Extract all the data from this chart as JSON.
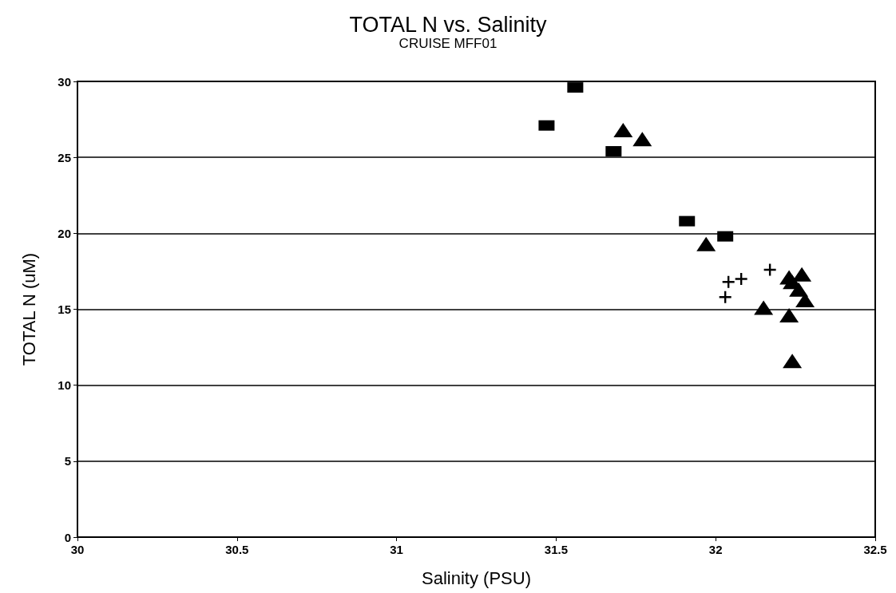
{
  "chart_data": {
    "type": "scatter",
    "title": "TOTAL N vs. Salinity",
    "subtitle": "CRUISE MFF01",
    "xlabel": "Salinity (PSU)",
    "ylabel": "TOTAL N (uM)",
    "xlim": [
      30,
      32.5
    ],
    "xticks": [
      30,
      30.5,
      31,
      31.5,
      32,
      32.5
    ],
    "ylim": [
      0,
      30
    ],
    "yticks": [
      0,
      5,
      10,
      15,
      20,
      25,
      30
    ],
    "grid": "y",
    "series": [
      {
        "color": "#000000",
        "marker": "square",
        "x": [
          31.56,
          31.47,
          31.68,
          31.91,
          32.03
        ],
        "values": [
          29.6,
          27.1,
          25.4,
          20.8,
          19.8
        ]
      },
      {
        "color": "#000000",
        "marker": "triangle",
        "x": [
          31.71,
          31.77,
          31.97,
          32.23,
          32.27,
          32.24,
          32.26,
          32.28,
          32.15,
          32.23,
          32.24
        ],
        "values": [
          26.8,
          26.2,
          19.3,
          17.1,
          17.3,
          16.8,
          16.3,
          15.6,
          15.1,
          14.6,
          11.6
        ]
      },
      {
        "color": "#000000",
        "marker": "cross",
        "x": [
          32.17,
          32.04,
          32.08,
          32.03
        ],
        "values": [
          17.6,
          16.8,
          17.0,
          15.8
        ]
      }
    ]
  }
}
